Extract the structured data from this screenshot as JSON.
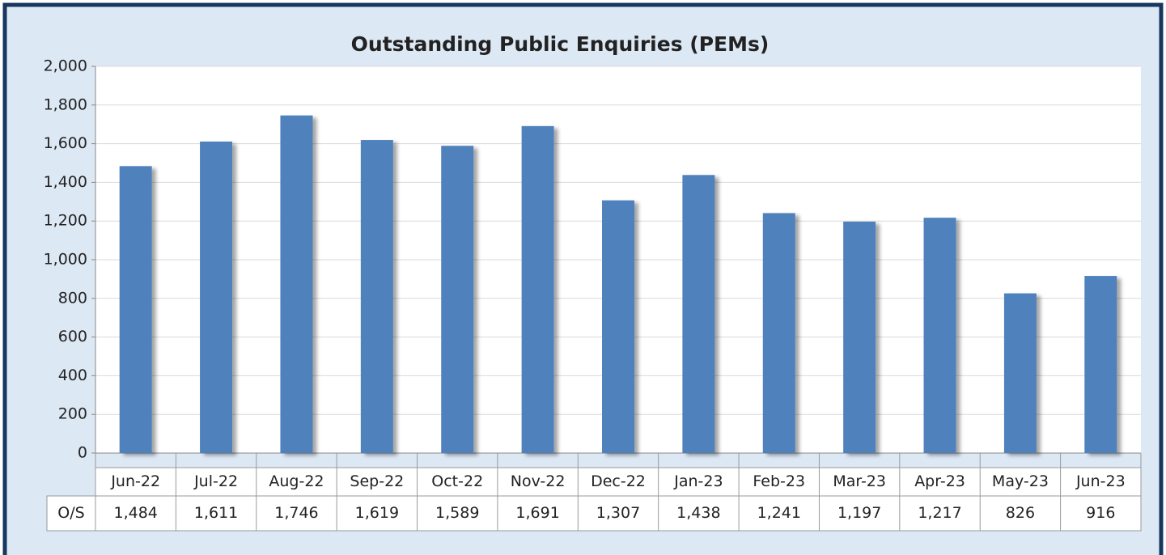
{
  "chart_data": {
    "type": "bar",
    "title": "Outstanding  Public Enquiries (PEMs)",
    "categories": [
      "Jun-22",
      "Jul-22",
      "Aug-22",
      "Sep-22",
      "Oct-22",
      "Nov-22",
      "Dec-22",
      "Jan-23",
      "Feb-23",
      "Mar-23",
      "Apr-23",
      "May-23",
      "Jun-23"
    ],
    "series": [
      {
        "name": "O/S",
        "color": "#4f81bd",
        "values": [
          1484,
          1611,
          1746,
          1619,
          1589,
          1691,
          1307,
          1438,
          1241,
          1197,
          1217,
          826,
          916
        ],
        "value_labels": [
          "1,484",
          "1,611",
          "1,746",
          "1,619",
          "1,589",
          "1,691",
          "1,307",
          "1,438",
          "1,241",
          "1,197",
          "1,217",
          "826",
          "916"
        ]
      }
    ],
    "ylim": [
      0,
      2000
    ],
    "yticks": [
      0,
      200,
      400,
      600,
      800,
      {
        "value": 1000,
        "label": "1,000"
      },
      {
        "value": 1200,
        "label": "1,200"
      },
      {
        "value": 1400,
        "label": "1,400"
      },
      {
        "value": 1600,
        "label": "1,600"
      },
      {
        "value": 1800,
        "label": "1,800"
      },
      {
        "value": 2000,
        "label": "2,000"
      }
    ],
    "grid": true
  }
}
